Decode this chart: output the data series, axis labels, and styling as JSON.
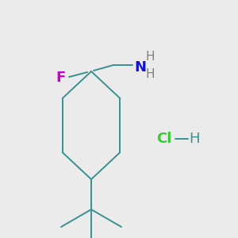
{
  "background_color": "#EBEBEB",
  "fig_width": 3.0,
  "fig_height": 3.0,
  "dpi": 100,
  "bond_color": "#3A9090",
  "bond_lw": 1.4,
  "F_color": "#CC00CC",
  "N_color": "#1414CC",
  "H_color": "#808080",
  "Cl_color": "#33CC33",
  "HCl_H_color": "#3A9090",
  "F_label": "F",
  "N_label": "N",
  "H_label": "H",
  "Cl_label": "Cl",
  "font_size_atom": 13,
  "font_size_H": 11
}
